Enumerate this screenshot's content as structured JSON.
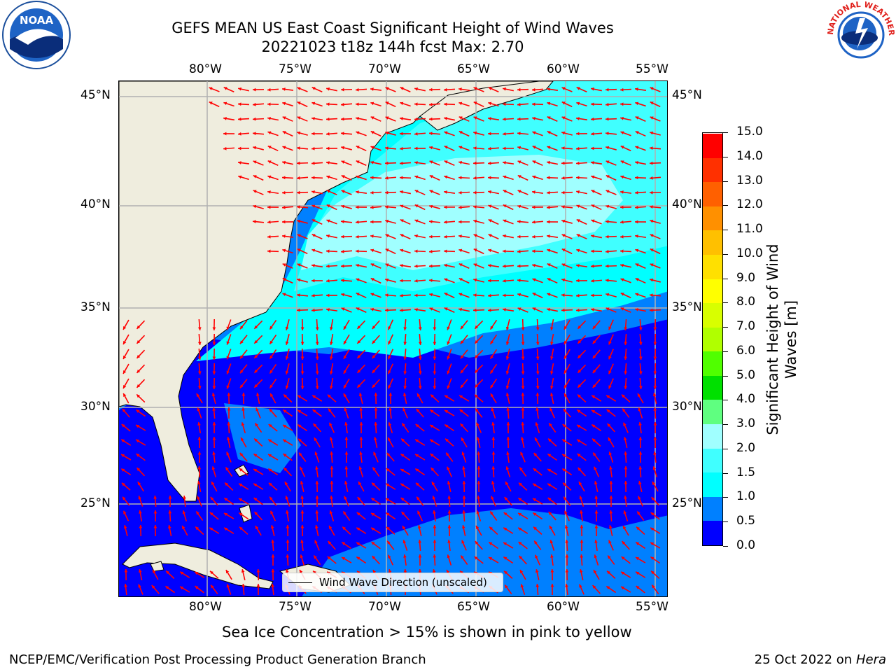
{
  "title": {
    "line1": "GEFS MEAN US East Coast Significant Height of Wind Waves",
    "line2": "20221023 t18z 144h fcst   Max: 2.70"
  },
  "logos": {
    "left": "noaa-logo",
    "left_text": "NOAA",
    "right": "nws-logo",
    "right_text": "NATIONAL WEATHER SERVICE"
  },
  "axes": {
    "lon_labels": [
      "80°W",
      "75°W",
      "70°W",
      "65°W",
      "60°W",
      "55°W"
    ],
    "lat_labels": [
      "45°N",
      "40°N",
      "35°N",
      "30°N",
      "25°N"
    ]
  },
  "legend": {
    "label": "Wind Wave Direction (unscaled)"
  },
  "colorbar": {
    "label": "Significant Height of Wind Waves [m]",
    "tick_labels": [
      "15.0",
      "14.0",
      "13.0",
      "12.0",
      "11.0",
      "10.0",
      "9.0",
      "8.0",
      "7.0",
      "6.0",
      "5.0",
      "4.0",
      "3.0",
      "2.0",
      "1.5",
      "1.0",
      "0.5",
      "0.0"
    ],
    "colors_bottom_to_top": [
      "#0000ff",
      "#0080ff",
      "#00ffff",
      "#40ffff",
      "#a0ffff",
      "#5fff80",
      "#00e000",
      "#50ff00",
      "#b0ff00",
      "#d8ff00",
      "#ffff00",
      "#ffe000",
      "#ffc000",
      "#ff9000",
      "#ff6000",
      "#ff3000",
      "#ff0000"
    ]
  },
  "colors": {
    "land": "#efedde",
    "arrows": "#ff0000",
    "gridlines": "#b0b0b0"
  },
  "footer": {
    "note": "Sea Ice Concentration > 15% is shown in pink to yellow",
    "left": "NCEP/EMC/Verification Post Processing Product Generation Branch",
    "right_date": "25 Oct 2022 on",
    "right_host": "Hera"
  }
}
